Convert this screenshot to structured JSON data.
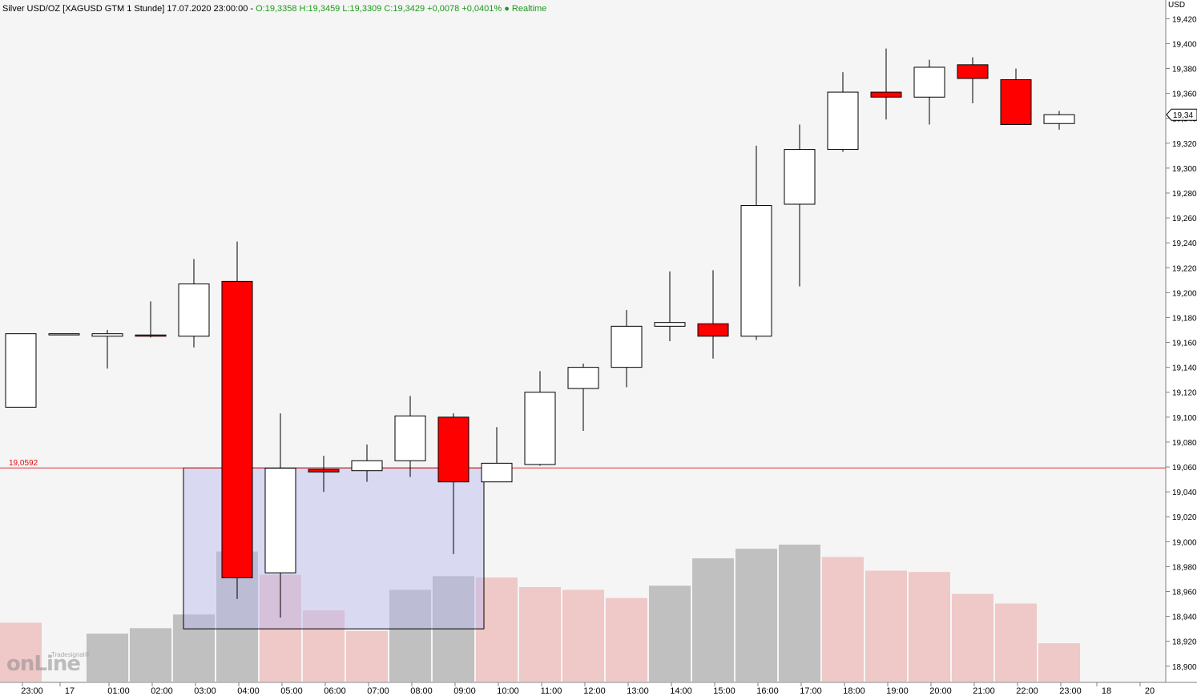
{
  "header": {
    "title": "Silver USD/OZ [XAGUSD GTM 1 Stunde] 17.07.2020 23:00:00 -",
    "ohlc": "O:19,3358 H:19,3459 L:19,3309 C:19,3429 +0,0078 +0,0401% ● Realtime"
  },
  "logo": {
    "main": "onLine",
    "small": "Tradesignal®"
  },
  "level": {
    "label": "19,0592",
    "value": 19.0592
  },
  "y_axis": {
    "unit": "USD",
    "ticks": [
      "18,900",
      "18,920",
      "18,940",
      "18,960",
      "18,980",
      "19,000",
      "19,020",
      "19,040",
      "19,060",
      "19,080",
      "19,100",
      "19,120",
      "19,140",
      "19,160",
      "19,180",
      "19,200",
      "19,220",
      "19,240",
      "19,260",
      "19,280",
      "19,300",
      "19,320",
      "19,340",
      "19,360",
      "19,380",
      "19,400",
      "19,420"
    ],
    "last_price_label": "19,34"
  },
  "x_axis": {
    "labels": [
      "23:00",
      "17",
      "01:00",
      "02:00",
      "03:00",
      "04:00",
      "05:00",
      "06:00",
      "07:00",
      "08:00",
      "09:00",
      "10:00",
      "11:00",
      "12:00",
      "13:00",
      "14:00",
      "15:00",
      "16:00",
      "17:00",
      "18:00",
      "19:00",
      "20:00",
      "21:00",
      "22:00",
      "23:00",
      "18",
      "20"
    ]
  },
  "colors": {
    "up": "#ffffff",
    "down": "#ff0000",
    "level": "#e03030",
    "vol_up": "#c0c0c0",
    "vol_down": "#efc8c8",
    "zone": "#b8b8f0"
  },
  "chart_data": {
    "type": "candlestick",
    "series": [
      {
        "name": "Silver USD/OZ",
        "ohlc": [
          {
            "t": "23:00",
            "o": 19.108,
            "h": 19.167,
            "l": 19.108,
            "c": 19.167
          },
          {
            "t": "00:00",
            "o": 19.167,
            "h": 19.167,
            "l": 19.167,
            "c": 19.167
          },
          {
            "t": "01:00",
            "o": 19.165,
            "h": 19.17,
            "l": 19.139,
            "c": 19.167
          },
          {
            "t": "02:00",
            "o": 19.166,
            "h": 19.193,
            "l": 19.164,
            "c": 19.165
          },
          {
            "t": "03:00",
            "o": 19.165,
            "h": 19.227,
            "l": 19.156,
            "c": 19.207
          },
          {
            "t": "04:00",
            "o": 19.209,
            "h": 19.241,
            "l": 18.954,
            "c": 18.971
          },
          {
            "t": "05:00",
            "o": 18.975,
            "h": 19.103,
            "l": 18.939,
            "c": 19.059
          },
          {
            "t": "06:00",
            "o": 19.058,
            "h": 19.069,
            "l": 19.04,
            "c": 19.056
          },
          {
            "t": "07:00",
            "o": 19.057,
            "h": 19.078,
            "l": 19.048,
            "c": 19.065
          },
          {
            "t": "08:00",
            "o": 19.065,
            "h": 19.117,
            "l": 19.052,
            "c": 19.101
          },
          {
            "t": "09:00",
            "o": 19.1,
            "h": 19.103,
            "l": 18.99,
            "c": 19.048
          },
          {
            "t": "10:00",
            "o": 19.048,
            "h": 19.092,
            "l": 19.048,
            "c": 19.063
          },
          {
            "t": "11:00",
            "o": 19.062,
            "h": 19.137,
            "l": 19.061,
            "c": 19.12
          },
          {
            "t": "12:00",
            "o": 19.123,
            "h": 19.143,
            "l": 19.089,
            "c": 19.14
          },
          {
            "t": "13:00",
            "o": 19.14,
            "h": 19.186,
            "l": 19.124,
            "c": 19.173
          },
          {
            "t": "14:00",
            "o": 19.173,
            "h": 19.217,
            "l": 19.161,
            "c": 19.176
          },
          {
            "t": "15:00",
            "o": 19.175,
            "h": 19.218,
            "l": 19.147,
            "c": 19.165
          },
          {
            "t": "16:00",
            "o": 19.165,
            "h": 19.318,
            "l": 19.162,
            "c": 19.27
          },
          {
            "t": "17:00",
            "o": 19.271,
            "h": 19.335,
            "l": 19.205,
            "c": 19.315
          },
          {
            "t": "18:00",
            "o": 19.315,
            "h": 19.377,
            "l": 19.313,
            "c": 19.361
          },
          {
            "t": "19:00",
            "o": 19.361,
            "h": 19.396,
            "l": 19.339,
            "c": 19.357
          },
          {
            "t": "20:00",
            "o": 19.357,
            "h": 19.387,
            "l": 19.335,
            "c": 19.381
          },
          {
            "t": "21:00",
            "o": 19.383,
            "h": 19.389,
            "l": 19.352,
            "c": 19.372
          },
          {
            "t": "22:00",
            "o": 19.371,
            "h": 19.38,
            "l": 19.335,
            "c": 19.335
          },
          {
            "t": "23:00",
            "o": 19.3358,
            "h": 19.3459,
            "l": 19.3309,
            "c": 19.3429
          }
        ]
      }
    ],
    "volume": [
      {
        "v": 0.43,
        "up": false
      },
      {
        "v": 0.0,
        "up": true
      },
      {
        "v": 0.35,
        "up": true
      },
      {
        "v": 0.39,
        "up": true
      },
      {
        "v": 0.49,
        "up": true
      },
      {
        "v": 0.95,
        "up": true
      },
      {
        "v": 0.78,
        "up": false
      },
      {
        "v": 0.52,
        "up": false
      },
      {
        "v": 0.37,
        "up": false
      },
      {
        "v": 0.67,
        "up": true
      },
      {
        "v": 0.77,
        "up": true
      },
      {
        "v": 0.76,
        "up": false
      },
      {
        "v": 0.69,
        "up": false
      },
      {
        "v": 0.67,
        "up": false
      },
      {
        "v": 0.61,
        "up": false
      },
      {
        "v": 0.7,
        "up": true
      },
      {
        "v": 0.9,
        "up": true
      },
      {
        "v": 0.97,
        "up": true
      },
      {
        "v": 1.0,
        "up": true
      },
      {
        "v": 0.91,
        "up": false
      },
      {
        "v": 0.81,
        "up": false
      },
      {
        "v": 0.8,
        "up": false
      },
      {
        "v": 0.64,
        "up": false
      },
      {
        "v": 0.57,
        "up": false
      },
      {
        "v": 0.28,
        "up": false
      }
    ],
    "zone": {
      "from_t": "03:00",
      "to_t": "10:00",
      "top": 19.0592,
      "bottom": 18.93
    },
    "ylim": [
      18.887,
      19.435
    ],
    "xlabel": "",
    "ylabel": "USD"
  }
}
